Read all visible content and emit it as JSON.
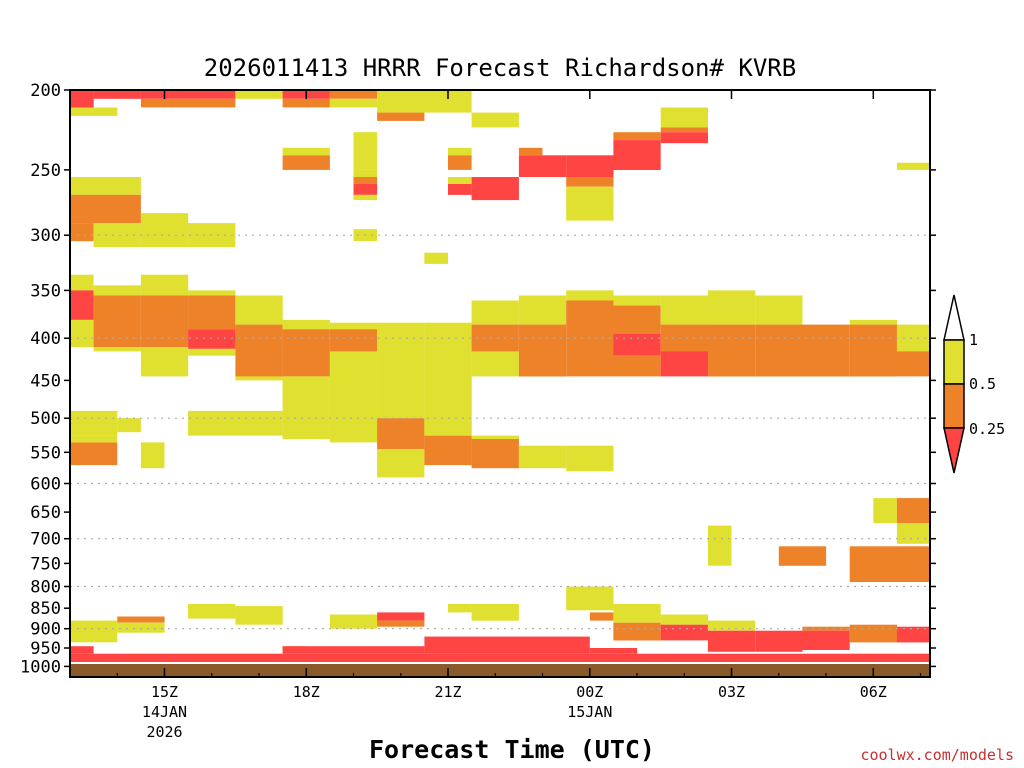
{
  "chart_data": {
    "type": "heatmap",
    "title": "2026011413 HRRR Forecast Richardson# KVRB",
    "xlabel": "Forecast Time (UTC)",
    "ylabel": "",
    "x_start_hour_utc": 13,
    "x_range_hours": [
      13,
      31.2
    ],
    "y_scale": "log pressure (hPa), inverted",
    "y_range_hpa": [
      1030,
      200
    ],
    "y_ticks": [
      200,
      250,
      300,
      350,
      400,
      450,
      500,
      550,
      600,
      650,
      700,
      750,
      800,
      850,
      900,
      950,
      1000
    ],
    "y_gridlines_hpa": [
      300,
      400,
      500,
      600,
      700,
      800,
      900,
      1000
    ],
    "x_ticks": [
      {
        "hour": 15,
        "label": "15Z",
        "date_line1": "14JAN",
        "date_line2": "2026"
      },
      {
        "hour": 18,
        "label": "18Z",
        "date_line1": "",
        "date_line2": ""
      },
      {
        "hour": 21,
        "label": "21Z",
        "date_line1": "",
        "date_line2": ""
      },
      {
        "hour": 24,
        "label": "00Z",
        "date_line1": "15JAN",
        "date_line2": ""
      },
      {
        "hour": 27,
        "label": "03Z",
        "date_line1": "",
        "date_line2": ""
      },
      {
        "hour": 30,
        "label": "06Z",
        "date_line1": "",
        "date_line2": ""
      }
    ],
    "levels": [
      {
        "name": "lt_0.25",
        "color": "#ff4444"
      },
      {
        "name": "0.25_0.5",
        "color": "#ee8228"
      },
      {
        "name": "0.5_1",
        "color": "#e0e030"
      }
    ],
    "colorbar_labels": [
      "1",
      "0.5",
      "0.25"
    ],
    "ground_color": "#8b5a2b",
    "cells": [
      [
        "y",
        13.0,
        14.0,
        210,
        215
      ],
      [
        "r",
        13.0,
        13.5,
        200,
        210
      ],
      [
        "r",
        13.5,
        14.5,
        200,
        205
      ],
      [
        "r",
        14.5,
        16.5,
        200,
        205
      ],
      [
        "o",
        14.5,
        16.5,
        205,
        210
      ],
      [
        "y",
        16.5,
        17.5,
        200,
        205
      ],
      [
        "r",
        17.5,
        18.5,
        200,
        205
      ],
      [
        "o",
        17.5,
        18.5,
        205,
        210
      ],
      [
        "o",
        18.5,
        19.5,
        200,
        205
      ],
      [
        "y",
        18.5,
        19.5,
        205,
        210
      ],
      [
        "y",
        19.5,
        21.5,
        200,
        213
      ],
      [
        "o",
        19.5,
        20.5,
        213,
        218
      ],
      [
        "y",
        21.5,
        22.5,
        213,
        222
      ],
      [
        "y",
        23.5,
        24.0,
        245,
        250
      ],
      [
        "y",
        25.5,
        26.5,
        210,
        222
      ],
      [
        "o",
        25.5,
        26.5,
        222,
        225
      ],
      [
        "r",
        25.5,
        26.5,
        225,
        232
      ],
      [
        "o",
        24.5,
        25.5,
        225,
        230
      ],
      [
        "r",
        24.5,
        25.5,
        230,
        250
      ],
      [
        "r",
        22.5,
        23.5,
        240,
        255
      ],
      [
        "o",
        22.5,
        23.0,
        235,
        240
      ],
      [
        "y",
        23.5,
        24.0,
        250,
        255
      ],
      [
        "r",
        23.5,
        24.5,
        240,
        255
      ],
      [
        "o",
        23.5,
        24.5,
        255,
        262
      ],
      [
        "y",
        23.5,
        24.5,
        262,
        288
      ],
      [
        "y",
        19.0,
        19.5,
        225,
        250
      ],
      [
        "y",
        17.5,
        18.5,
        235,
        240
      ],
      [
        "o",
        17.5,
        18.5,
        240,
        250
      ],
      [
        "y",
        19.0,
        19.5,
        250,
        255
      ],
      [
        "o",
        19.0,
        19.5,
        255,
        260
      ],
      [
        "r",
        19.0,
        19.5,
        260,
        268
      ],
      [
        "y",
        19.0,
        19.5,
        268,
        272
      ],
      [
        "y",
        19.0,
        19.5,
        295,
        305
      ],
      [
        "y",
        21.0,
        21.5,
        235,
        240
      ],
      [
        "o",
        21.0,
        21.5,
        240,
        250
      ],
      [
        "y",
        21.0,
        21.5,
        255,
        260
      ],
      [
        "r",
        21.0,
        21.5,
        260,
        268
      ],
      [
        "r",
        21.5,
        22.5,
        255,
        272
      ],
      [
        "y",
        20.5,
        21.0,
        315,
        325
      ],
      [
        "y",
        30.5,
        31.2,
        245,
        250
      ],
      [
        "y",
        13.0,
        14.5,
        255,
        268
      ],
      [
        "o",
        13.0,
        14.5,
        268,
        290
      ],
      [
        "o",
        13.0,
        13.5,
        290,
        305
      ],
      [
        "y",
        13.5,
        14.5,
        290,
        310
      ],
      [
        "y",
        14.5,
        15.5,
        282,
        310
      ],
      [
        "y",
        15.5,
        16.5,
        290,
        310
      ],
      [
        "y",
        13.0,
        13.5,
        335,
        350
      ],
      [
        "r",
        13.0,
        13.5,
        350,
        380
      ],
      [
        "y",
        13.0,
        13.5,
        380,
        410
      ],
      [
        "y",
        13.5,
        14.5,
        345,
        355
      ],
      [
        "o",
        13.5,
        14.5,
        355,
        410
      ],
      [
        "y",
        13.5,
        14.5,
        410,
        415
      ],
      [
        "y",
        14.5,
        15.5,
        335,
        355
      ],
      [
        "o",
        14.5,
        15.5,
        355,
        410
      ],
      [
        "y",
        14.5,
        15.5,
        410,
        445
      ],
      [
        "y",
        15.5,
        16.5,
        350,
        355
      ],
      [
        "o",
        15.5,
        16.5,
        355,
        390
      ],
      [
        "r",
        15.5,
        16.5,
        390,
        412
      ],
      [
        "y",
        15.5,
        16.5,
        412,
        420
      ],
      [
        "y",
        16.5,
        17.5,
        355,
        385
      ],
      [
        "o",
        16.5,
        17.5,
        385,
        445
      ],
      [
        "y",
        16.5,
        17.5,
        445,
        450
      ],
      [
        "y",
        17.5,
        18.5,
        380,
        390
      ],
      [
        "o",
        17.5,
        18.5,
        390,
        445
      ],
      [
        "y",
        17.5,
        18.5,
        445,
        530
      ],
      [
        "y",
        18.5,
        19.5,
        383,
        390
      ],
      [
        "o",
        18.5,
        19.5,
        390,
        415
      ],
      [
        "y",
        18.5,
        19.5,
        415,
        535
      ],
      [
        "y",
        19.5,
        20.5,
        383,
        500
      ],
      [
        "o",
        19.5,
        20.5,
        500,
        545
      ],
      [
        "y",
        19.5,
        20.5,
        545,
        590
      ],
      [
        "y",
        20.5,
        21.5,
        383,
        510
      ],
      [
        "o",
        20.5,
        21.5,
        525,
        570
      ],
      [
        "y",
        20.5,
        21.5,
        505,
        525
      ],
      [
        "y",
        21.5,
        22.5,
        360,
        385
      ],
      [
        "o",
        21.5,
        22.5,
        385,
        415
      ],
      [
        "y",
        21.5,
        22.5,
        415,
        445
      ],
      [
        "o",
        21.5,
        22.5,
        530,
        575
      ],
      [
        "y",
        21.5,
        22.5,
        525,
        530
      ],
      [
        "y",
        22.5,
        23.5,
        355,
        385
      ],
      [
        "o",
        22.5,
        23.5,
        385,
        445
      ],
      [
        "y",
        22.5,
        23.5,
        540,
        575
      ],
      [
        "y",
        23.5,
        24.5,
        540,
        580
      ],
      [
        "y",
        23.5,
        24.5,
        350,
        360
      ],
      [
        "o",
        23.5,
        24.5,
        360,
        445
      ],
      [
        "y",
        24.5,
        25.5,
        355,
        365
      ],
      [
        "o",
        24.5,
        25.5,
        365,
        395
      ],
      [
        "r",
        24.5,
        25.5,
        395,
        420
      ],
      [
        "o",
        24.5,
        25.5,
        420,
        445
      ],
      [
        "y",
        25.5,
        26.5,
        355,
        385
      ],
      [
        "o",
        25.5,
        26.5,
        385,
        415
      ],
      [
        "r",
        25.5,
        26.5,
        415,
        445
      ],
      [
        "y",
        26.5,
        27.5,
        350,
        385
      ],
      [
        "o",
        26.5,
        27.5,
        385,
        445
      ],
      [
        "y",
        27.5,
        28.5,
        355,
        385
      ],
      [
        "o",
        27.5,
        28.5,
        385,
        445
      ],
      [
        "o",
        28.5,
        29.5,
        385,
        445
      ],
      [
        "y",
        29.5,
        30.5,
        380,
        385
      ],
      [
        "o",
        29.5,
        30.5,
        385,
        445
      ],
      [
        "y",
        30.5,
        31.2,
        385,
        415
      ],
      [
        "o",
        30.5,
        31.2,
        415,
        445
      ],
      [
        "y",
        13.0,
        14.0,
        490,
        525
      ],
      [
        "o",
        13.0,
        14.0,
        535,
        570
      ],
      [
        "y",
        13.0,
        14.0,
        525,
        535
      ],
      [
        "y",
        14.0,
        14.5,
        500,
        520
      ],
      [
        "y",
        14.5,
        15.0,
        535,
        575
      ],
      [
        "y",
        15.5,
        17.5,
        490,
        525
      ],
      [
        "y",
        26.5,
        27.0,
        675,
        755
      ],
      [
        "y",
        30.0,
        30.5,
        625,
        670
      ],
      [
        "o",
        30.5,
        31.2,
        625,
        670
      ],
      [
        "y",
        30.5,
        31.2,
        670,
        710
      ],
      [
        "o",
        28.0,
        29.0,
        715,
        755
      ],
      [
        "o",
        29.5,
        30.5,
        715,
        790
      ],
      [
        "o",
        30.5,
        31.2,
        715,
        790
      ],
      [
        "y",
        23.5,
        24.5,
        800,
        855
      ],
      [
        "y",
        13.0,
        14.0,
        880,
        935
      ],
      [
        "o",
        14.0,
        15.0,
        870,
        885
      ],
      [
        "y",
        14.0,
        15.0,
        885,
        910
      ],
      [
        "y",
        15.5,
        16.5,
        840,
        875
      ],
      [
        "y",
        16.5,
        17.5,
        845,
        890
      ],
      [
        "y",
        18.5,
        19.5,
        865,
        900
      ],
      [
        "r",
        19.5,
        20.5,
        860,
        880
      ],
      [
        "o",
        19.5,
        20.5,
        880,
        895
      ],
      [
        "y",
        21.0,
        21.5,
        840,
        860
      ],
      [
        "y",
        21.5,
        22.5,
        840,
        880
      ],
      [
        "o",
        24.0,
        24.5,
        860,
        880
      ],
      [
        "y",
        24.5,
        25.5,
        840,
        885
      ],
      [
        "o",
        24.5,
        25.5,
        885,
        930
      ],
      [
        "y",
        25.5,
        26.5,
        865,
        890
      ],
      [
        "r",
        25.5,
        26.5,
        890,
        930
      ],
      [
        "y",
        26.5,
        27.5,
        880,
        905
      ],
      [
        "r",
        26.5,
        27.5,
        905,
        960
      ],
      [
        "r",
        27.5,
        28.5,
        905,
        960
      ],
      [
        "o",
        28.5,
        29.5,
        895,
        905
      ],
      [
        "r",
        28.5,
        29.5,
        905,
        955
      ],
      [
        "o",
        29.5,
        30.5,
        890,
        935
      ],
      [
        "r",
        30.5,
        31.2,
        895,
        935
      ],
      [
        "r",
        13.0,
        13.5,
        945,
        965
      ],
      [
        "y",
        17.5,
        18.0,
        945,
        960
      ],
      [
        "r",
        13.0,
        31.2,
        965,
        1010
      ],
      [
        "o",
        13.0,
        31.2,
        1010,
        1015
      ],
      [
        "r",
        20.5,
        24.0,
        920,
        965
      ],
      [
        "r",
        17.5,
        20.5,
        945,
        965
      ],
      [
        "r",
        24.0,
        25.0,
        950,
        965
      ]
    ]
  },
  "footer": {
    "source": "coolwx.com/models"
  }
}
